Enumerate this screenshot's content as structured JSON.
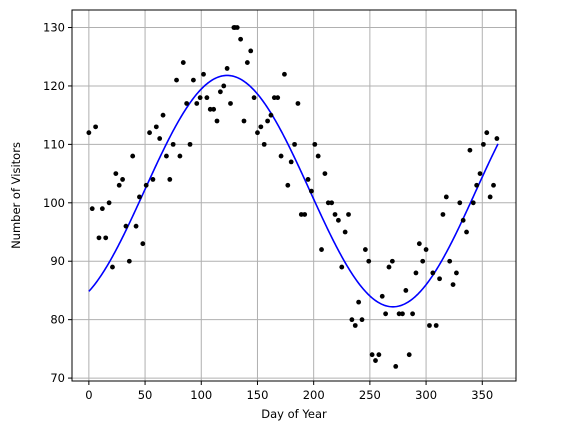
{
  "chart_data": {
    "type": "scatter",
    "xlabel": "Day of Year",
    "ylabel": "Number of Visitors",
    "xlim": [
      -15,
      380
    ],
    "ylim": [
      69.5,
      133
    ],
    "xticks": [
      0,
      50,
      100,
      150,
      200,
      250,
      300,
      350
    ],
    "yticks": [
      70,
      80,
      90,
      100,
      110,
      120,
      130
    ],
    "grid": true,
    "colors": {
      "points": "#000000",
      "fit": "#0000ff",
      "grid": "#b0b0b0"
    },
    "series": [
      {
        "kind": "points",
        "x": [
          0,
          3,
          6,
          9,
          12,
          15,
          18,
          21,
          24,
          27,
          30,
          33,
          36,
          39,
          42,
          45,
          48,
          51,
          54,
          57,
          60,
          63,
          66,
          69,
          72,
          75,
          78,
          81,
          84,
          87,
          90,
          93,
          96,
          99,
          102,
          105,
          108,
          111,
          114,
          117,
          120,
          123,
          126,
          129,
          130,
          132,
          135,
          138,
          141,
          144,
          147,
          150,
          153,
          156,
          159,
          162,
          165,
          168,
          171,
          174,
          177,
          180,
          183,
          186,
          189,
          192,
          195,
          198,
          201,
          204,
          207,
          210,
          213,
          216,
          219,
          222,
          225,
          228,
          231,
          234,
          237,
          240,
          243,
          246,
          249,
          252,
          255,
          258,
          261,
          264,
          267,
          270,
          273,
          276,
          279,
          282,
          285,
          288,
          291,
          294,
          297,
          300,
          303,
          306,
          309,
          312,
          315,
          318,
          321,
          324,
          327,
          330,
          333,
          336,
          339,
          342,
          345,
          348,
          351,
          354,
          357,
          360,
          363
        ],
        "y": [
          112,
          99,
          113,
          94,
          99,
          94,
          100,
          89,
          105,
          103,
          104,
          96,
          90,
          108,
          96,
          101,
          93,
          103,
          112,
          104,
          113,
          111,
          115,
          108,
          104,
          110,
          121,
          108,
          124,
          117,
          110,
          121,
          117,
          118,
          122,
          118,
          116,
          116,
          114,
          119,
          120,
          123,
          117,
          130,
          130,
          130,
          128,
          114,
          124,
          126,
          118,
          112,
          113,
          110,
          114,
          115,
          118,
          118,
          108,
          122,
          103,
          107,
          110,
          117,
          98,
          98,
          104,
          102,
          110,
          108,
          92,
          105,
          100,
          100,
          98,
          97,
          89,
          95,
          98,
          80,
          79,
          83,
          80,
          92,
          90,
          74,
          73,
          74,
          84,
          81,
          89,
          90,
          72,
          81,
          81,
          85,
          74,
          81,
          88,
          93,
          90,
          92,
          79,
          88,
          79,
          87,
          98,
          101,
          90,
          86,
          88,
          100,
          97,
          95,
          109,
          100,
          103,
          105,
          110,
          112,
          101,
          103,
          111
        ]
      },
      {
        "kind": "fit-curve",
        "x_range": [
          0,
          364
        ],
        "model": {
          "mean": 102,
          "amplitude": 19.8,
          "period": 295,
          "peak_day": 123
        }
      }
    ]
  }
}
